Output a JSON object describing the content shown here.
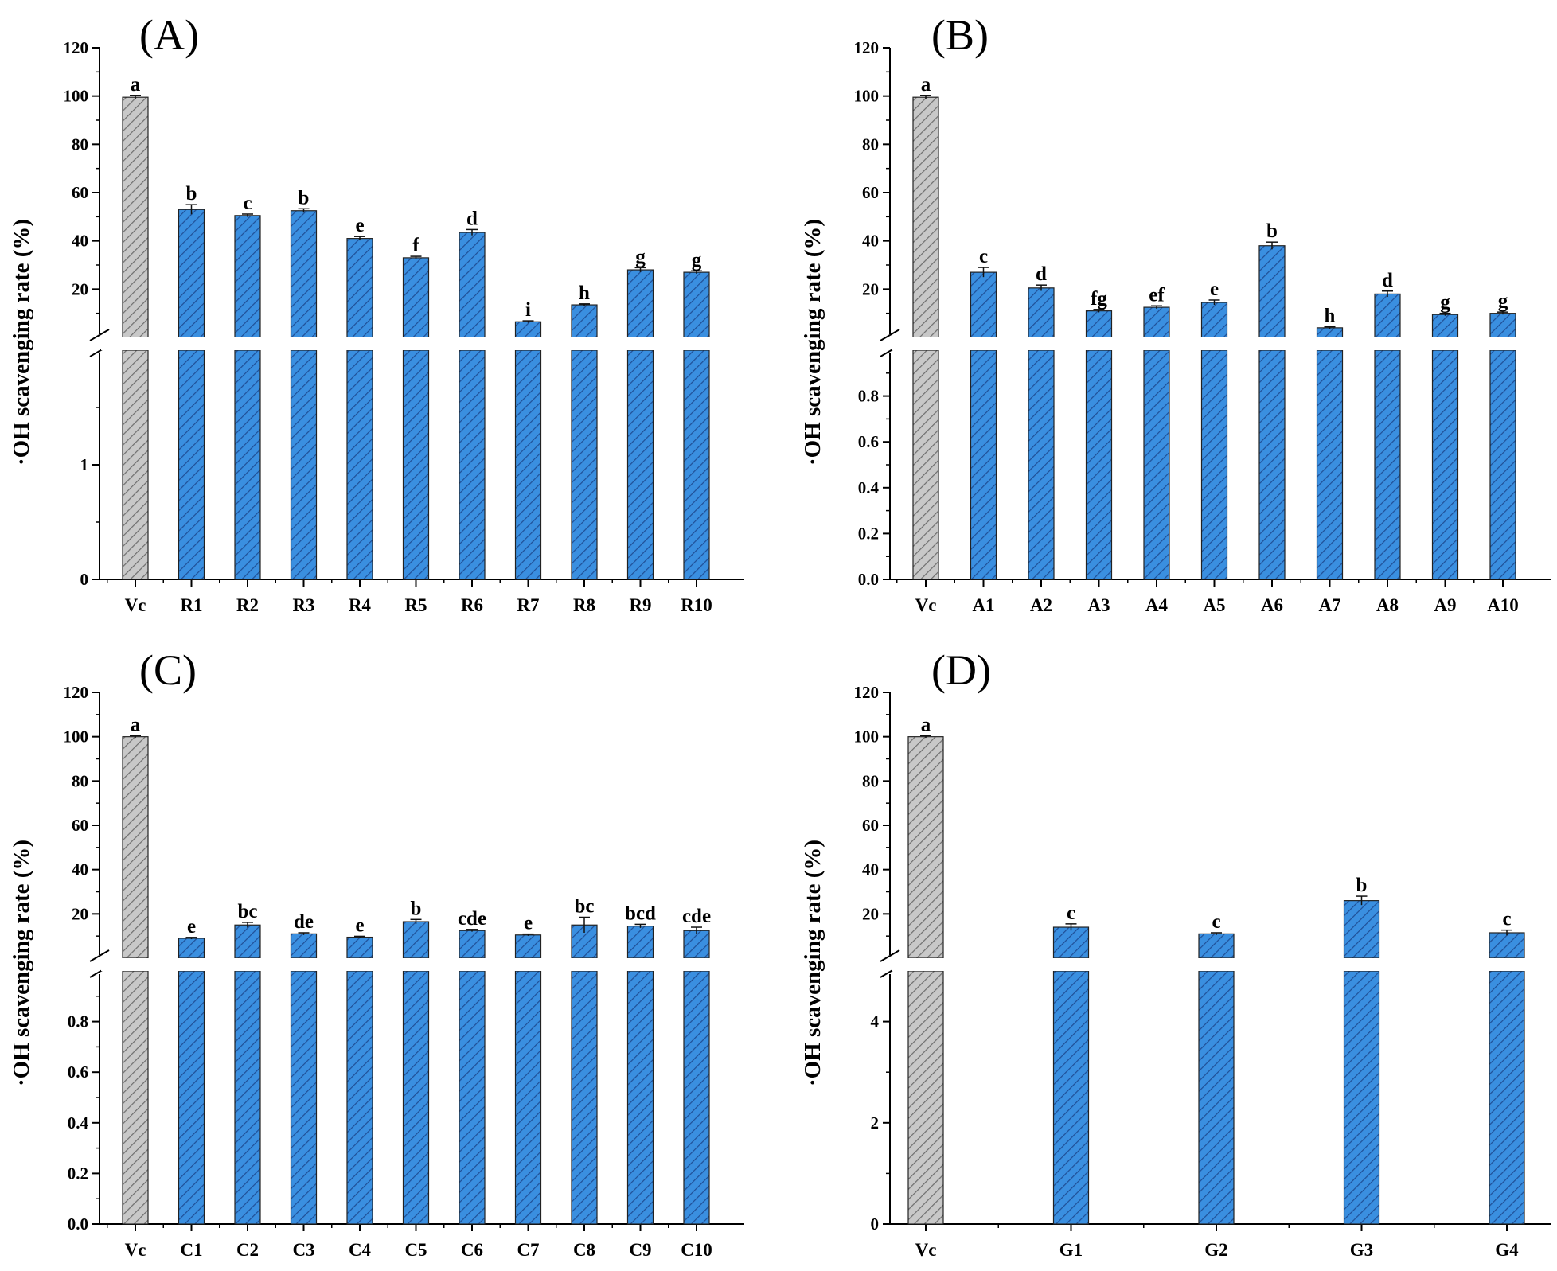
{
  "colors": {
    "reference_bar": "#c8c8c8",
    "sample_bar": "#3a8fe0",
    "hatch_reference": "#6e6e6e",
    "hatch_sample": "#1f4f96",
    "axis": "#000000"
  },
  "chart_data": [
    {
      "type": "bar",
      "panel": "(A)",
      "ylabel": "·OH scavenging rate (%)",
      "categories": [
        "Vc",
        "R1",
        "R2",
        "R3",
        "R4",
        "R5",
        "R6",
        "R7",
        "R8",
        "R9",
        "R10"
      ],
      "values": [
        99.5,
        53.0,
        50.5,
        52.5,
        41.0,
        33.0,
        43.5,
        6.5,
        13.5,
        28.0,
        27.0
      ],
      "errors": [
        0.8,
        2.0,
        0.6,
        0.8,
        0.8,
        0.6,
        1.2,
        0.4,
        0.4,
        0.9,
        0.6
      ],
      "significance": [
        "a",
        "b",
        "c",
        "b",
        "e",
        "f",
        "d",
        "i",
        "h",
        "g",
        "g"
      ],
      "broken_axis": {
        "lower_range": [
          0,
          2
        ],
        "upper_range": [
          0,
          120
        ]
      },
      "yticks_lower": [
        "0",
        "1"
      ],
      "yticks_upper": [
        "20",
        "40",
        "60",
        "80",
        "100",
        "120"
      ]
    },
    {
      "type": "bar",
      "panel": "(B)",
      "ylabel": "·OH scavenging rate (%)",
      "categories": [
        "Vc",
        "A1",
        "A2",
        "A3",
        "A4",
        "A5",
        "A6",
        "A7",
        "A8",
        "A9",
        "A10"
      ],
      "values": [
        99.5,
        27.0,
        20.5,
        11.0,
        12.5,
        14.5,
        38.0,
        4.0,
        18.0,
        9.5,
        10.0
      ],
      "errors": [
        0.8,
        2.0,
        1.2,
        0.6,
        0.6,
        1.0,
        1.5,
        0.4,
        1.2,
        0.5,
        0.5
      ],
      "significance": [
        "a",
        "c",
        "d",
        "fg",
        "ef",
        "e",
        "b",
        "h",
        "d",
        "g",
        "g"
      ],
      "broken_axis": {
        "lower_range": [
          0,
          1
        ],
        "upper_range": [
          0,
          120
        ]
      },
      "yticks_lower": [
        "0.0",
        "0.2",
        "0.4",
        "0.6",
        "0.8"
      ],
      "yticks_upper": [
        "20",
        "40",
        "60",
        "80",
        "100",
        "120"
      ]
    },
    {
      "type": "bar",
      "panel": "(C)",
      "ylabel": "·OH  scavenging rate (%)",
      "categories": [
        "Vc",
        "C1",
        "C2",
        "C3",
        "C4",
        "C5",
        "C6",
        "C7",
        "C8",
        "C9",
        "C10"
      ],
      "values": [
        100.0,
        9.0,
        15.0,
        11.0,
        9.5,
        16.5,
        12.5,
        10.5,
        15.0,
        14.5,
        12.5
      ],
      "errors": [
        0.5,
        0.4,
        1.2,
        0.5,
        0.4,
        1.0,
        0.5,
        0.4,
        3.5,
        0.8,
        1.5
      ],
      "significance": [
        "a",
        "e",
        "bc",
        "de",
        "e",
        "b",
        "cde",
        "e",
        "bc",
        "bcd",
        "cde"
      ],
      "broken_axis": {
        "lower_range": [
          0,
          1
        ],
        "upper_range": [
          0,
          120
        ]
      },
      "yticks_lower": [
        "0.0",
        "0.2",
        "0.4",
        "0.6",
        "0.8"
      ],
      "yticks_upper": [
        "20",
        "40",
        "60",
        "80",
        "100",
        "120"
      ]
    },
    {
      "type": "bar",
      "panel": "(D)",
      "ylabel": "·OH  scavenging rate (%)",
      "categories": [
        "Vc",
        "G1",
        "G2",
        "G3",
        "G4"
      ],
      "values": [
        100.0,
        14.0,
        11.0,
        26.0,
        11.5
      ],
      "errors": [
        0.5,
        1.5,
        0.5,
        2.0,
        1.2
      ],
      "significance": [
        "a",
        "c",
        "c",
        "b",
        "c"
      ],
      "broken_axis": {
        "lower_range": [
          0,
          5
        ],
        "upper_range": [
          0,
          120
        ]
      },
      "yticks_lower": [
        "0",
        "2",
        "4"
      ],
      "yticks_upper": [
        "20",
        "40",
        "60",
        "80",
        "100",
        "120"
      ]
    }
  ]
}
